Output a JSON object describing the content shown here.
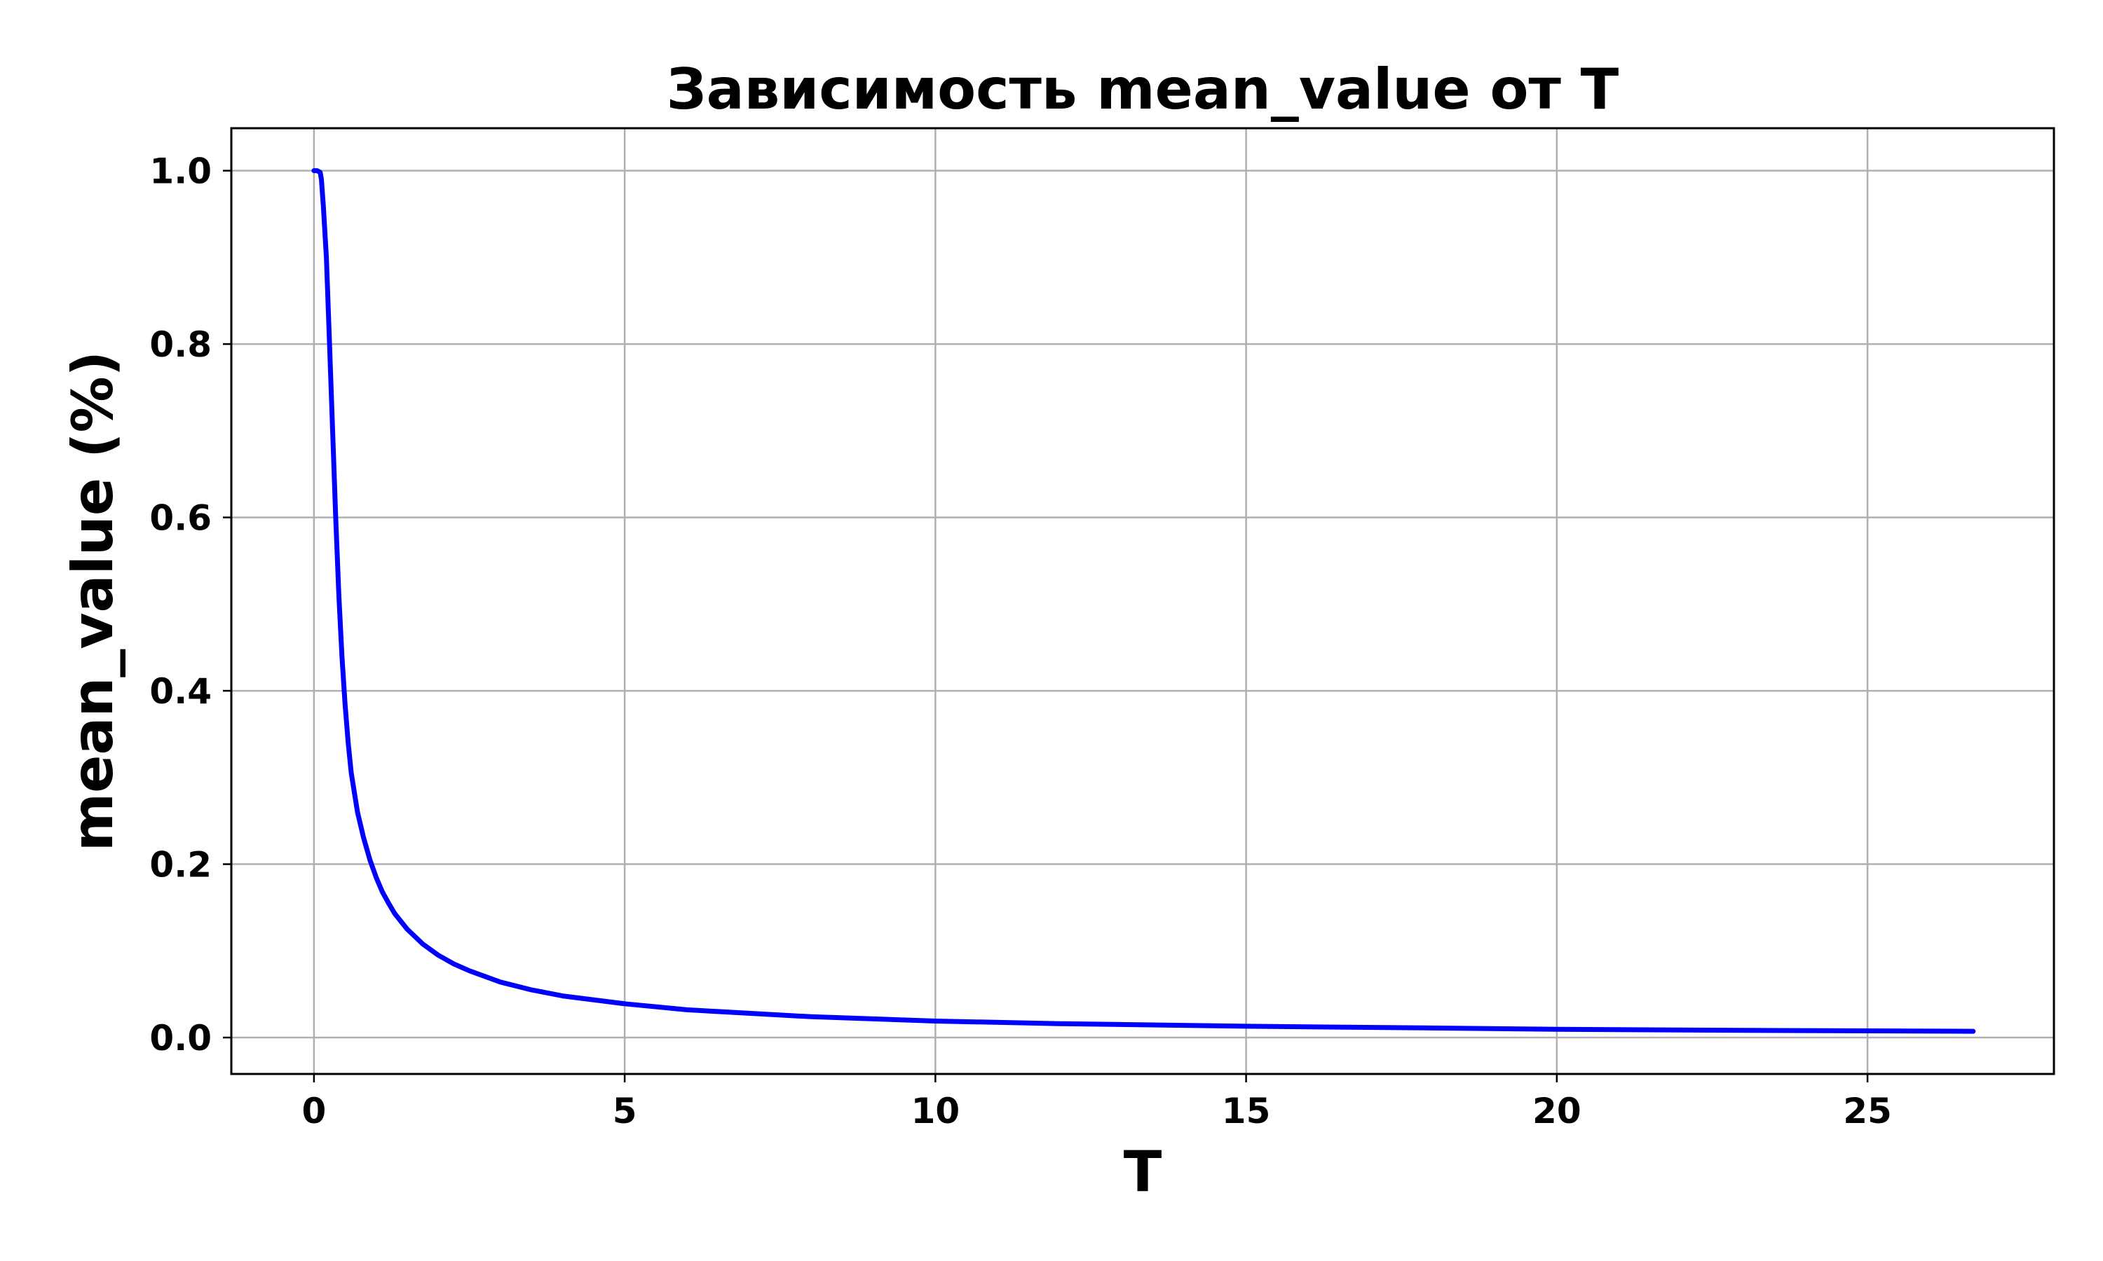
{
  "chart_data": {
    "type": "line",
    "title": "Зависимость mean_value от T",
    "xlabel": "T",
    "ylabel": "mean_value (%)",
    "xlim": [
      -1.33,
      28.0
    ],
    "ylim": [
      -0.042,
      1.049
    ],
    "xticks": [
      0,
      5,
      10,
      15,
      20,
      25
    ],
    "xtick_labels": [
      "0",
      "5",
      "10",
      "15",
      "20",
      "25"
    ],
    "yticks": [
      0.0,
      0.2,
      0.4,
      0.6,
      0.8,
      1.0
    ],
    "ytick_labels": [
      "0.0",
      "0.2",
      "0.4",
      "0.6",
      "0.8",
      "1.0"
    ],
    "grid": true,
    "series": [
      {
        "color": "#0000ff",
        "x": [
          0.0,
          0.05,
          0.1,
          0.12,
          0.15,
          0.2,
          0.25,
          0.3,
          0.35,
          0.4,
          0.45,
          0.5,
          0.55,
          0.6,
          0.7,
          0.8,
          0.9,
          1.0,
          1.1,
          1.2,
          1.3,
          1.5,
          1.75,
          2.0,
          2.25,
          2.5,
          3.0,
          3.5,
          4.0,
          5.0,
          6.0,
          7.0,
          8.0,
          10.0,
          12.0,
          15.0,
          18.0,
          20.0,
          23.0,
          26.7
        ],
        "y": [
          1.0,
          1.0,
          0.998,
          0.99,
          0.96,
          0.9,
          0.8,
          0.7,
          0.6,
          0.51,
          0.44,
          0.385,
          0.34,
          0.305,
          0.26,
          0.23,
          0.205,
          0.185,
          0.168,
          0.155,
          0.143,
          0.125,
          0.108,
          0.095,
          0.085,
          0.077,
          0.064,
          0.055,
          0.048,
          0.039,
          0.032,
          0.028,
          0.024,
          0.019,
          0.016,
          0.013,
          0.011,
          0.0095,
          0.0083,
          0.0072
        ]
      }
    ]
  }
}
